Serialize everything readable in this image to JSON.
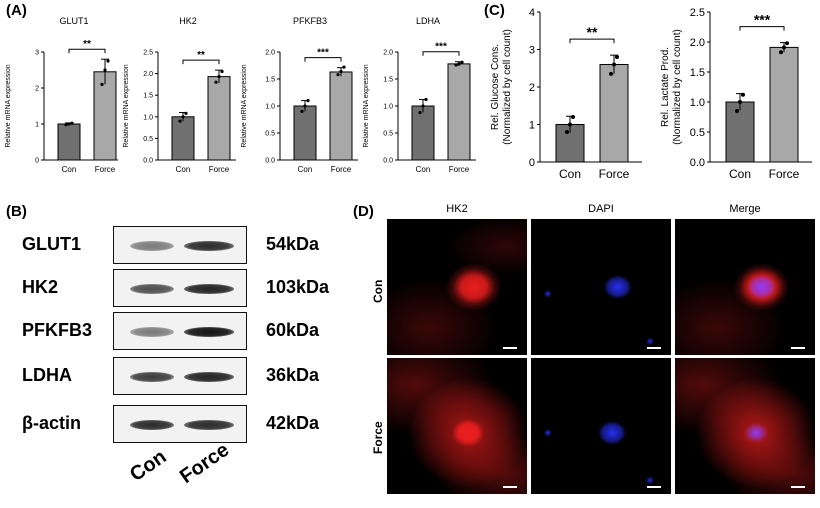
{
  "panels": {
    "A": "(A)",
    "B": "(B)",
    "C": "(C)",
    "D": "(D)"
  },
  "chart_data": [
    {
      "type": "bar",
      "title": "GLUT1",
      "ylabel": "Relative mRNA expression",
      "categories": [
        "Con",
        "Force"
      ],
      "values": [
        1.0,
        2.45
      ],
      "errors": [
        0.03,
        0.35
      ],
      "points": [
        [
          0.98,
          1.0,
          1.02
        ],
        [
          2.1,
          2.5,
          2.75
        ]
      ],
      "ylim": [
        0,
        3
      ],
      "yticks": [
        "0",
        "1",
        "2",
        "3"
      ],
      "significance": "**",
      "colors": [
        "#707070",
        "#a8a8a8"
      ]
    },
    {
      "type": "bar",
      "title": "HK2",
      "ylabel": "Relative mRNA expression",
      "categories": [
        "Con",
        "Force"
      ],
      "values": [
        1.0,
        1.93
      ],
      "errors": [
        0.1,
        0.15
      ],
      "points": [
        [
          0.9,
          1.0,
          1.08
        ],
        [
          1.8,
          1.93,
          2.05
        ]
      ],
      "ylim": [
        0,
        2.5
      ],
      "yticks": [
        "0.0",
        "0.5",
        "1.0",
        "1.5",
        "2.0",
        "2.5"
      ],
      "significance": "**",
      "colors": [
        "#707070",
        "#a8a8a8"
      ]
    },
    {
      "type": "bar",
      "title": "PFKFB3",
      "ylabel": "Relative mRNA expression",
      "categories": [
        "Con",
        "Force"
      ],
      "values": [
        1.0,
        1.63
      ],
      "errors": [
        0.1,
        0.08
      ],
      "points": [
        [
          0.9,
          1.0,
          1.1
        ],
        [
          1.58,
          1.64,
          1.72
        ]
      ],
      "ylim": [
        0,
        2.0
      ],
      "yticks": [
        "0.0",
        "0.5",
        "1.0",
        "1.5",
        "2.0"
      ],
      "significance": "***",
      "colors": [
        "#707070",
        "#a8a8a8"
      ]
    },
    {
      "type": "bar",
      "title": "LDHA",
      "ylabel": "Relative mRNA expression",
      "categories": [
        "Con",
        "Force"
      ],
      "values": [
        1.0,
        1.78
      ],
      "errors": [
        0.12,
        0.04
      ],
      "points": [
        [
          0.88,
          1.0,
          1.12
        ],
        [
          1.76,
          1.78,
          1.81
        ]
      ],
      "ylim": [
        0,
        2.0
      ],
      "yticks": [
        "0.0",
        "0.5",
        "1.0",
        "1.5",
        "2.0"
      ],
      "significance": "***",
      "colors": [
        "#707070",
        "#a8a8a8"
      ]
    },
    {
      "type": "bar",
      "title": "",
      "ylabel": "Rel. Glucose Cons.\n(Normalized by cell count)",
      "categories": [
        "Con",
        "Force"
      ],
      "values": [
        1.0,
        2.6
      ],
      "errors": [
        0.22,
        0.25
      ],
      "points": [
        [
          0.8,
          1.0,
          1.2
        ],
        [
          2.35,
          2.6,
          2.8
        ]
      ],
      "ylim": [
        0,
        4
      ],
      "yticks": [
        "0",
        "1",
        "2",
        "3",
        "4"
      ],
      "significance": "**",
      "colors": [
        "#707070",
        "#a8a8a8"
      ]
    },
    {
      "type": "bar",
      "title": "",
      "ylabel": "Rel. Lactate Prod.\n(Normalized by cell count)",
      "categories": [
        "Con",
        "Force"
      ],
      "values": [
        1.0,
        1.91
      ],
      "errors": [
        0.14,
        0.08
      ],
      "points": [
        [
          0.85,
          1.0,
          1.12
        ],
        [
          1.83,
          1.91,
          1.98
        ]
      ],
      "ylim": [
        0,
        2.5
      ],
      "yticks": [
        "0.0",
        "0.5",
        "1.0",
        "1.5",
        "2.0",
        "2.5"
      ],
      "significance": "***",
      "colors": [
        "#707070",
        "#a8a8a8"
      ]
    }
  ],
  "western_blot": {
    "rows": [
      {
        "protein": "GLUT1",
        "kda": "54kDa",
        "con": 0.35,
        "force": 0.8
      },
      {
        "protein": "HK2",
        "kda": "103kDa",
        "con": 0.6,
        "force": 0.85
      },
      {
        "protein": "PFKFB3",
        "kda": "60kDa",
        "con": 0.35,
        "force": 0.95
      },
      {
        "protein": "LDHA",
        "kda": "36kDa",
        "con": 0.7,
        "force": 0.85
      },
      {
        "protein": "β-actin",
        "kda": "42kDa",
        "con": 0.8,
        "force": 0.8
      }
    ],
    "lanes": [
      "Con",
      "Force"
    ]
  },
  "fluorescence": {
    "columns": [
      "HK2",
      "DAPI",
      "Merge"
    ],
    "rows": [
      "Con",
      "Force"
    ]
  }
}
